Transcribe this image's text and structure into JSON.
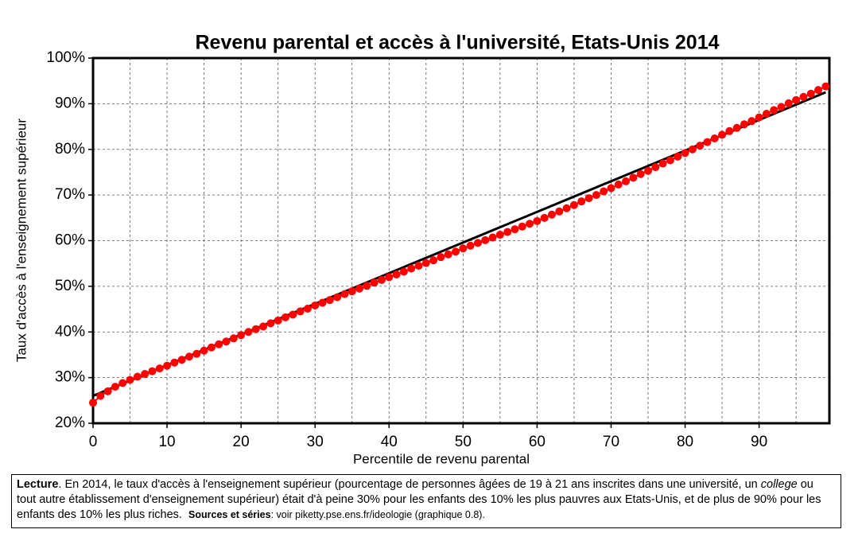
{
  "chart_data": {
    "type": "scatter",
    "title": "Revenu parental et accès à l'université, Etats-Unis 2014",
    "xlabel": "Percentile de revenu parental",
    "ylabel": "Taux d'accès à l'enseignement supérieur",
    "x": [
      0,
      1,
      2,
      3,
      4,
      5,
      6,
      7,
      8,
      9,
      10,
      11,
      12,
      13,
      14,
      15,
      16,
      17,
      18,
      19,
      20,
      21,
      22,
      23,
      24,
      25,
      26,
      27,
      28,
      29,
      30,
      31,
      32,
      33,
      34,
      35,
      36,
      37,
      38,
      39,
      40,
      41,
      42,
      43,
      44,
      45,
      46,
      47,
      48,
      49,
      50,
      51,
      52,
      53,
      54,
      55,
      56,
      57,
      58,
      59,
      60,
      61,
      62,
      63,
      64,
      65,
      66,
      67,
      68,
      69,
      70,
      71,
      72,
      73,
      74,
      75,
      76,
      77,
      78,
      79,
      80,
      81,
      82,
      83,
      84,
      85,
      86,
      87,
      88,
      89,
      90,
      91,
      92,
      93,
      94,
      95,
      96,
      97,
      98,
      99
    ],
    "series": [
      {
        "color": "#ff0000",
        "values": [
          24.5,
          26,
          27,
          28,
          28.8,
          29.5,
          30.2,
          30.8,
          31.4,
          32,
          32.6,
          33.3,
          33.9,
          34.6,
          35.2,
          35.9,
          36.6,
          37.3,
          37.9,
          38.6,
          39.3,
          40,
          40.6,
          41.2,
          41.9,
          42.5,
          43.2,
          43.8,
          44.5,
          45.1,
          45.8,
          46.4,
          47,
          47.6,
          48.3,
          48.9,
          49.5,
          50.1,
          50.8,
          51.4,
          52,
          52.6,
          53.2,
          53.9,
          54.5,
          55.1,
          55.7,
          56.4,
          57,
          57.6,
          58.3,
          58.9,
          59.5,
          60.1,
          60.7,
          61.3,
          61.9,
          62.5,
          63.1,
          63.7,
          64.3,
          65,
          65.7,
          66.4,
          67.1,
          67.8,
          68.6,
          69.3,
          70,
          70.8,
          71.5,
          72.3,
          73,
          73.8,
          74.6,
          75.3,
          76.1,
          76.9,
          77.6,
          78.4,
          79.2,
          80,
          80.8,
          81.6,
          82.4,
          83.2,
          84,
          84.7,
          85.5,
          86.2,
          87,
          87.8,
          88.6,
          89.3,
          90.1,
          90.8,
          91.5,
          92.2,
          93,
          93.8
        ]
      }
    ],
    "trend": {
      "color": "#000000",
      "x": [
        0,
        99
      ],
      "values": [
        26,
        92.5
      ]
    },
    "xlim": [
      0,
      99.5
    ],
    "ylim": [
      20,
      100
    ],
    "xticks": [
      0,
      10,
      20,
      30,
      40,
      50,
      60,
      70,
      80,
      90
    ],
    "xgridlines": [
      5,
      10,
      15,
      20,
      25,
      30,
      35,
      40,
      45,
      50,
      55,
      60,
      65,
      70,
      75,
      80,
      85,
      90,
      95
    ],
    "yticks": [
      {
        "value": 20,
        "label": "20%"
      },
      {
        "value": 30,
        "label": "30%"
      },
      {
        "value": 40,
        "label": "40%"
      },
      {
        "value": 50,
        "label": "50%"
      },
      {
        "value": 60,
        "label": "60%"
      },
      {
        "value": 70,
        "label": "70%"
      },
      {
        "value": 80,
        "label": "80%"
      },
      {
        "value": 90,
        "label": "90%"
      },
      {
        "value": 100,
        "label": "100%"
      }
    ],
    "grid": true
  },
  "note": {
    "lead": "Lecture",
    "text1": ". En 2014, le taux d'accès à l'enseignement supérieur (pourcentage de personnes âgées de 19 à 21 ans inscrites dans une université, un ",
    "italic": "college",
    "text2": " ou tout autre établissement d'enseignement supérieur) était d'à peine 30% pour les enfants des 10% les plus pauvres aux Etats-Unis, et de plus de 90% pour les enfants des 10% les plus riches.",
    "sources_label": "Sources et séries",
    "sources": ": voir piketty.pse.ens.fr/ideologie (graphique 0.8)."
  }
}
